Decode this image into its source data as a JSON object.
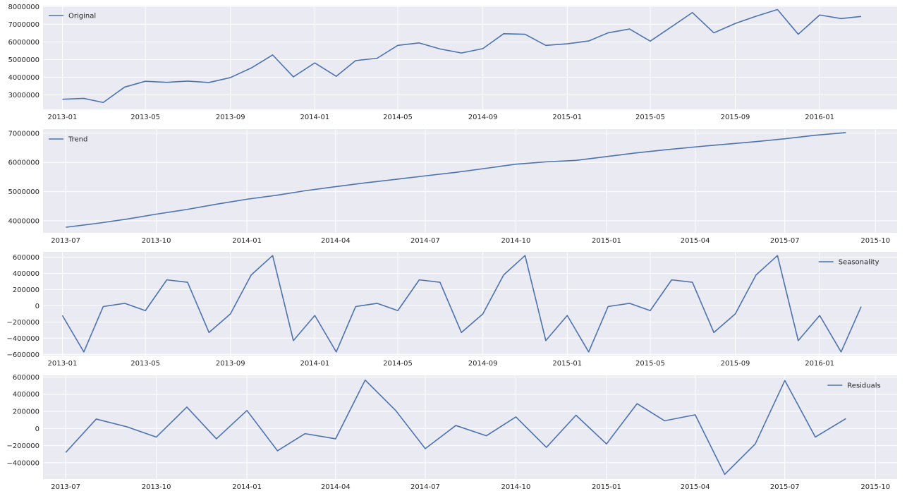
{
  "line_color": "#4c72b0",
  "panel_background": "#eaeaf2",
  "chart_data": [
    {
      "type": "line",
      "name": "Original",
      "legend": "Original",
      "legend_position": "top-left",
      "x": [
        "2013-01-01",
        "2013-02-01",
        "2013-03-01",
        "2013-04-01",
        "2013-05-01",
        "2013-06-01",
        "2013-07-01",
        "2013-08-01",
        "2013-09-01",
        "2013-10-01",
        "2013-11-01",
        "2013-12-01",
        "2014-01-01",
        "2014-02-01",
        "2014-03-01",
        "2014-04-01",
        "2014-05-01",
        "2014-06-01",
        "2014-07-01",
        "2014-08-01",
        "2014-09-01",
        "2014-10-01",
        "2014-11-01",
        "2014-12-01",
        "2015-01-01",
        "2015-02-01",
        "2015-03-01",
        "2015-04-01",
        "2015-05-01",
        "2015-06-01",
        "2015-07-01",
        "2015-08-01",
        "2015-09-01",
        "2015-10-01",
        "2015-11-01",
        "2015-12-01",
        "2016-01-01",
        "2016-02-01",
        "2016-03-01"
      ],
      "y": [
        2750000,
        2800000,
        2570000,
        3440000,
        3770000,
        3710000,
        3780000,
        3700000,
        3980000,
        4520000,
        5260000,
        4020000,
        4810000,
        4050000,
        4940000,
        5070000,
        5800000,
        5940000,
        5600000,
        5370000,
        5620000,
        6460000,
        6430000,
        5800000,
        5890000,
        6050000,
        6510000,
        6730000,
        6040000,
        6860000,
        7660000,
        6510000,
        7040000,
        7450000,
        7830000,
        6430000,
        7520000,
        7320000,
        7440000
      ],
      "xlim": [
        "2012-12-04",
        "2016-04-22"
      ],
      "ylim": [
        2180000,
        8050000
      ],
      "xticks": [
        {
          "date": "2013-01-01",
          "label": "2013-01"
        },
        {
          "date": "2013-05-01",
          "label": "2013-05"
        },
        {
          "date": "2013-09-01",
          "label": "2013-09"
        },
        {
          "date": "2014-01-01",
          "label": "2014-01"
        },
        {
          "date": "2014-05-01",
          "label": "2014-05"
        },
        {
          "date": "2014-09-01",
          "label": "2014-09"
        },
        {
          "date": "2015-01-01",
          "label": "2015-01"
        },
        {
          "date": "2015-05-01",
          "label": "2015-05"
        },
        {
          "date": "2015-09-01",
          "label": "2015-09"
        },
        {
          "date": "2016-01-01",
          "label": "2016-01"
        }
      ],
      "yticks": [
        {
          "value": 3000000,
          "label": "3000000"
        },
        {
          "value": 4000000,
          "label": "4000000"
        },
        {
          "value": 5000000,
          "label": "5000000"
        },
        {
          "value": 6000000,
          "label": "6000000"
        },
        {
          "value": 7000000,
          "label": "7000000"
        },
        {
          "value": 8000000,
          "label": "8000000"
        }
      ]
    },
    {
      "type": "line",
      "name": "Trend",
      "legend": "Trend",
      "legend_position": "top-left",
      "x": [
        "2013-07-01",
        "2013-08-01",
        "2013-09-01",
        "2013-10-01",
        "2013-11-01",
        "2013-12-01",
        "2014-01-01",
        "2014-02-01",
        "2014-03-01",
        "2014-04-01",
        "2014-05-01",
        "2014-06-01",
        "2014-07-01",
        "2014-08-01",
        "2014-09-01",
        "2014-10-01",
        "2014-11-01",
        "2014-12-01",
        "2015-01-01",
        "2015-02-01",
        "2015-03-01",
        "2015-04-01",
        "2015-05-01",
        "2015-06-01",
        "2015-07-01",
        "2015-08-01",
        "2015-09-01"
      ],
      "y": [
        3780000,
        3910000,
        4060000,
        4230000,
        4390000,
        4570000,
        4740000,
        4880000,
        5030000,
        5170000,
        5300000,
        5420000,
        5540000,
        5660000,
        5800000,
        5940000,
        6020000,
        6070000,
        6200000,
        6330000,
        6430000,
        6530000,
        6620000,
        6710000,
        6810000,
        6930000,
        7020000
      ],
      "xlim": [
        "2013-06-08",
        "2015-10-23"
      ],
      "ylim": [
        3590000,
        7140000
      ],
      "xticks": [
        {
          "date": "2013-07-01",
          "label": "2013-07"
        },
        {
          "date": "2013-10-01",
          "label": "2013-10"
        },
        {
          "date": "2014-01-01",
          "label": "2014-01"
        },
        {
          "date": "2014-04-01",
          "label": "2014-04"
        },
        {
          "date": "2014-07-01",
          "label": "2014-07"
        },
        {
          "date": "2014-10-01",
          "label": "2014-10"
        },
        {
          "date": "2015-01-01",
          "label": "2015-01"
        },
        {
          "date": "2015-04-01",
          "label": "2015-04"
        },
        {
          "date": "2015-07-01",
          "label": "2015-07"
        },
        {
          "date": "2015-10-01",
          "label": "2015-10"
        }
      ],
      "yticks": [
        {
          "value": 4000000,
          "label": "4000000"
        },
        {
          "value": 5000000,
          "label": "5000000"
        },
        {
          "value": 6000000,
          "label": "6000000"
        },
        {
          "value": 7000000,
          "label": "7000000"
        }
      ]
    },
    {
      "type": "line",
      "name": "Seasonality",
      "legend": "Seasonality",
      "legend_position": "top-right",
      "x": [
        "2013-01-01",
        "2013-02-01",
        "2013-03-01",
        "2013-04-01",
        "2013-05-01",
        "2013-06-01",
        "2013-07-01",
        "2013-08-01",
        "2013-09-01",
        "2013-10-01",
        "2013-11-01",
        "2013-12-01",
        "2014-01-01",
        "2014-02-01",
        "2014-03-01",
        "2014-04-01",
        "2014-05-01",
        "2014-06-01",
        "2014-07-01",
        "2014-08-01",
        "2014-09-01",
        "2014-10-01",
        "2014-11-01",
        "2014-12-01",
        "2015-01-01",
        "2015-02-01",
        "2015-03-01",
        "2015-04-01",
        "2015-05-01",
        "2015-06-01",
        "2015-07-01",
        "2015-08-01",
        "2015-09-01",
        "2015-10-01",
        "2015-11-01",
        "2015-12-01",
        "2016-01-01",
        "2016-02-01",
        "2016-03-01"
      ],
      "y": [
        -120000,
        -570000,
        -10000,
        30000,
        -60000,
        320000,
        290000,
        -330000,
        -100000,
        380000,
        620000,
        -430000,
        -120000,
        -570000,
        -10000,
        30000,
        -60000,
        320000,
        290000,
        -330000,
        -100000,
        380000,
        620000,
        -430000,
        -120000,
        -570000,
        -10000,
        30000,
        -60000,
        320000,
        290000,
        -330000,
        -100000,
        380000,
        620000,
        -430000,
        -120000,
        -570000,
        -10000
      ],
      "xlim": [
        "2012-12-04",
        "2016-04-22"
      ],
      "ylim": [
        -615000,
        665000
      ],
      "xticks": [
        {
          "date": "2013-01-01",
          "label": "2013-01"
        },
        {
          "date": "2013-05-01",
          "label": "2013-05"
        },
        {
          "date": "2013-09-01",
          "label": "2013-09"
        },
        {
          "date": "2014-01-01",
          "label": "2014-01"
        },
        {
          "date": "2014-05-01",
          "label": "2014-05"
        },
        {
          "date": "2014-09-01",
          "label": "2014-09"
        },
        {
          "date": "2015-01-01",
          "label": "2015-01"
        },
        {
          "date": "2015-05-01",
          "label": "2015-05"
        },
        {
          "date": "2015-09-01",
          "label": "2015-09"
        },
        {
          "date": "2016-01-01",
          "label": "2016-01"
        }
      ],
      "yticks": [
        {
          "value": -600000,
          "label": "−600000"
        },
        {
          "value": -400000,
          "label": "−400000"
        },
        {
          "value": -200000,
          "label": "−200000"
        },
        {
          "value": 0,
          "label": "0"
        },
        {
          "value": 200000,
          "label": "200000"
        },
        {
          "value": 400000,
          "label": "400000"
        },
        {
          "value": 600000,
          "label": "600000"
        }
      ]
    },
    {
      "type": "line",
      "name": "Residuals",
      "legend": "Residuals",
      "legend_position": "top-right",
      "x": [
        "2013-07-01",
        "2013-08-01",
        "2013-09-01",
        "2013-10-01",
        "2013-11-01",
        "2013-12-01",
        "2014-01-01",
        "2014-02-01",
        "2014-03-01",
        "2014-04-01",
        "2014-05-01",
        "2014-06-01",
        "2014-07-01",
        "2014-08-01",
        "2014-09-01",
        "2014-10-01",
        "2014-11-01",
        "2014-12-01",
        "2015-01-01",
        "2015-02-01",
        "2015-03-01",
        "2015-04-01",
        "2015-05-01",
        "2015-06-01",
        "2015-07-01",
        "2015-08-01",
        "2015-09-01"
      ],
      "y": [
        -280000,
        110000,
        20000,
        -100000,
        250000,
        -120000,
        210000,
        -260000,
        -60000,
        -120000,
        565000,
        210000,
        -235000,
        35000,
        -85000,
        135000,
        -220000,
        155000,
        -180000,
        290000,
        90000,
        160000,
        -535000,
        -180000,
        560000,
        -100000,
        115000
      ],
      "xlim": [
        "2013-06-08",
        "2015-10-23"
      ],
      "ylim": [
        -590000,
        620000
      ],
      "xticks": [
        {
          "date": "2013-07-01",
          "label": "2013-07"
        },
        {
          "date": "2013-10-01",
          "label": "2013-10"
        },
        {
          "date": "2014-01-01",
          "label": "2014-01"
        },
        {
          "date": "2014-04-01",
          "label": "2014-04"
        },
        {
          "date": "2014-07-01",
          "label": "2014-07"
        },
        {
          "date": "2014-10-01",
          "label": "2014-10"
        },
        {
          "date": "2015-01-01",
          "label": "2015-01"
        },
        {
          "date": "2015-04-01",
          "label": "2015-04"
        },
        {
          "date": "2015-07-01",
          "label": "2015-07"
        },
        {
          "date": "2015-10-01",
          "label": "2015-10"
        }
      ],
      "yticks": [
        {
          "value": -400000,
          "label": "−400000"
        },
        {
          "value": -200000,
          "label": "−200000"
        },
        {
          "value": 0,
          "label": "0"
        },
        {
          "value": 200000,
          "label": "200000"
        },
        {
          "value": 400000,
          "label": "400000"
        },
        {
          "value": 600000,
          "label": "600000"
        }
      ]
    }
  ]
}
